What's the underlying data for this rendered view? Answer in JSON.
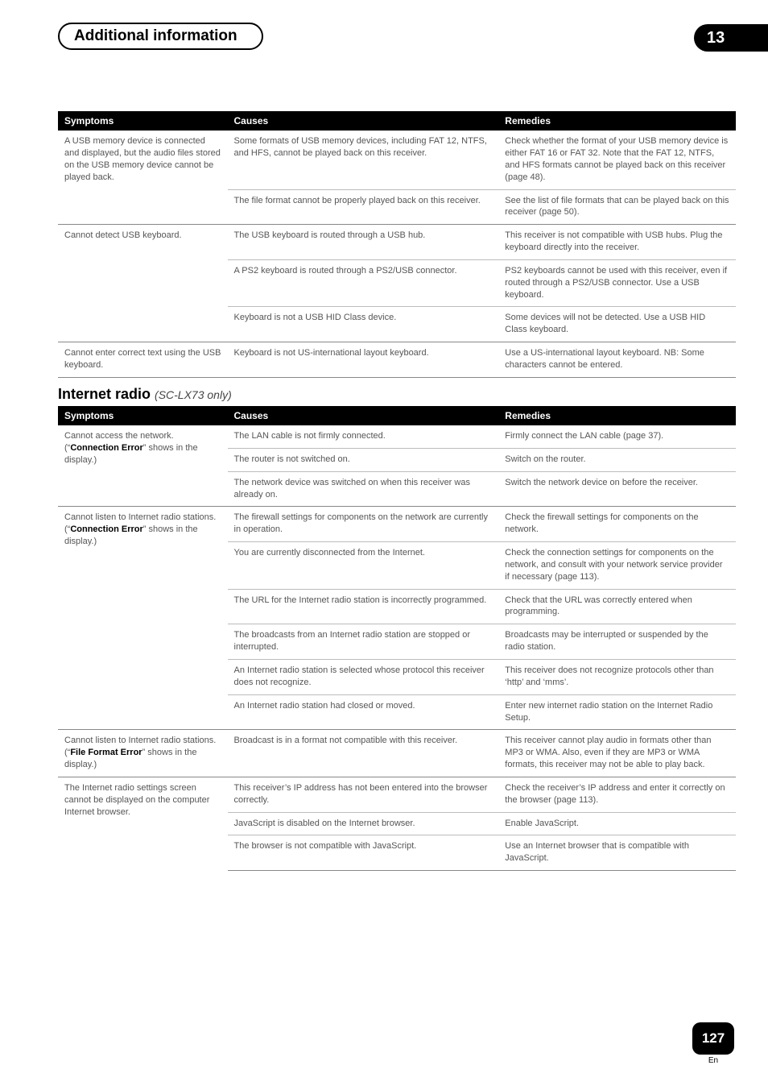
{
  "chapter_title": "Additional information",
  "chapter_number": "13",
  "table1": {
    "headers": {
      "symptoms": "Symptoms",
      "causes": "Causes",
      "remedies": "Remedies"
    },
    "rows": [
      {
        "symptom": "A USB memory device is connected and displayed, but the audio files stored on the USB memory device cannot be played back.",
        "lines": [
          {
            "cause": "Some formats of USB memory devices, including FAT 12, NTFS, and HFS, cannot be played back on this receiver.",
            "remedy": "Check whether the format of your USB memory device is either FAT 16 or FAT 32. Note that the FAT 12, NTFS, and HFS formats cannot be played back on this receiver (page 48)."
          },
          {
            "cause": "The file format cannot be properly played back on this receiver.",
            "remedy": "See the list of file formats that can be played back on this receiver (page 50)."
          }
        ]
      },
      {
        "symptom": "Cannot detect USB keyboard.",
        "lines": [
          {
            "cause": "The USB keyboard is routed through a USB hub.",
            "remedy": "This receiver is not compatible with USB hubs. Plug the keyboard directly into the receiver."
          },
          {
            "cause": "A PS2 keyboard is routed through a PS2/USB connector.",
            "remedy": "PS2 keyboards cannot be used with this receiver, even if routed through a PS2/USB connector. Use a USB keyboard."
          },
          {
            "cause": "Keyboard is not a USB HID Class device.",
            "remedy": "Some devices will not be detected. Use a USB HID Class keyboard."
          }
        ]
      },
      {
        "symptom": "Cannot enter correct text using the USB keyboard.",
        "lines": [
          {
            "cause": "Keyboard is not US-international layout keyboard.",
            "remedy": "Use a US-international layout keyboard. NB: Some characters cannot be entered."
          }
        ]
      }
    ]
  },
  "section_heading": "Internet radio",
  "section_sub": "(SC-LX73 only)",
  "table2": {
    "headers": {
      "symptoms": "Symptoms",
      "causes": "Causes",
      "remedies": "Remedies"
    },
    "rows": [
      {
        "symptom_pre": "Cannot access the network.",
        "symptom_post_lead": "(“",
        "symptom_bold": "Connection Error",
        "symptom_post": "” shows in the display.)",
        "lines": [
          {
            "cause": "The LAN cable is not firmly connected.",
            "remedy": "Firmly connect the LAN cable (page 37)."
          },
          {
            "cause": "The router is not switched on.",
            "remedy": "Switch on the router."
          },
          {
            "cause": "The network device was switched on when this receiver was already on.",
            "remedy": "Switch the network device on before the receiver."
          }
        ]
      },
      {
        "symptom_pre": "Cannot listen to Internet radio stations.",
        "symptom_post_lead": "(“",
        "symptom_bold": "Connection Error",
        "symptom_post": "” shows in the display.)",
        "lines": [
          {
            "cause": "The firewall settings for components on the network are currently in operation.",
            "remedy": "Check the firewall settings for components on the network."
          },
          {
            "cause": "You are currently disconnected from the Internet.",
            "remedy": "Check the connection settings for components on the network, and consult with your network service provider if necessary (page 113)."
          },
          {
            "cause": "The URL for the Internet radio station is incorrectly programmed.",
            "remedy": "Check that the URL was correctly entered when programming."
          },
          {
            "cause": "The broadcasts from an Internet radio station are stopped or interrupted.",
            "remedy": "Broadcasts may be interrupted or suspended by the radio station."
          },
          {
            "cause": "An Internet radio station is selected whose protocol this receiver does not recognize.",
            "remedy": "This receiver does not recognize protocols other than ‘http’ and ‘mms’."
          },
          {
            "cause": "An Internet radio station had closed or moved.",
            "remedy": "Enter new internet radio station on the Internet Radio Setup."
          }
        ]
      },
      {
        "symptom_pre": "Cannot listen to Internet radio stations. (“",
        "symptom_bold": "File Format Error",
        "symptom_post": "” shows in the display.)",
        "lines": [
          {
            "cause": "Broadcast is in a format not compatible with this receiver.",
            "remedy": "This receiver cannot play audio in formats other than MP3 or WMA. Also, even if they are MP3 or WMA formats, this receiver may not be able to play back."
          }
        ]
      },
      {
        "symptom_pre": "The Internet radio settings screen cannot be displayed on the computer Internet browser.",
        "lines": [
          {
            "cause": "This receiver’s IP address has not been entered into the browser correctly.",
            "remedy": "Check the receiver’s IP address and enter it correctly on the browser (page 113)."
          },
          {
            "cause": "JavaScript is disabled on the Internet browser.",
            "remedy": "Enable JavaScript."
          },
          {
            "cause": "The browser is not compatible with JavaScript.",
            "remedy": "Use an Internet browser that is compatible with JavaScript."
          }
        ]
      }
    ]
  },
  "footer": {
    "page": "127",
    "lang": "En"
  }
}
